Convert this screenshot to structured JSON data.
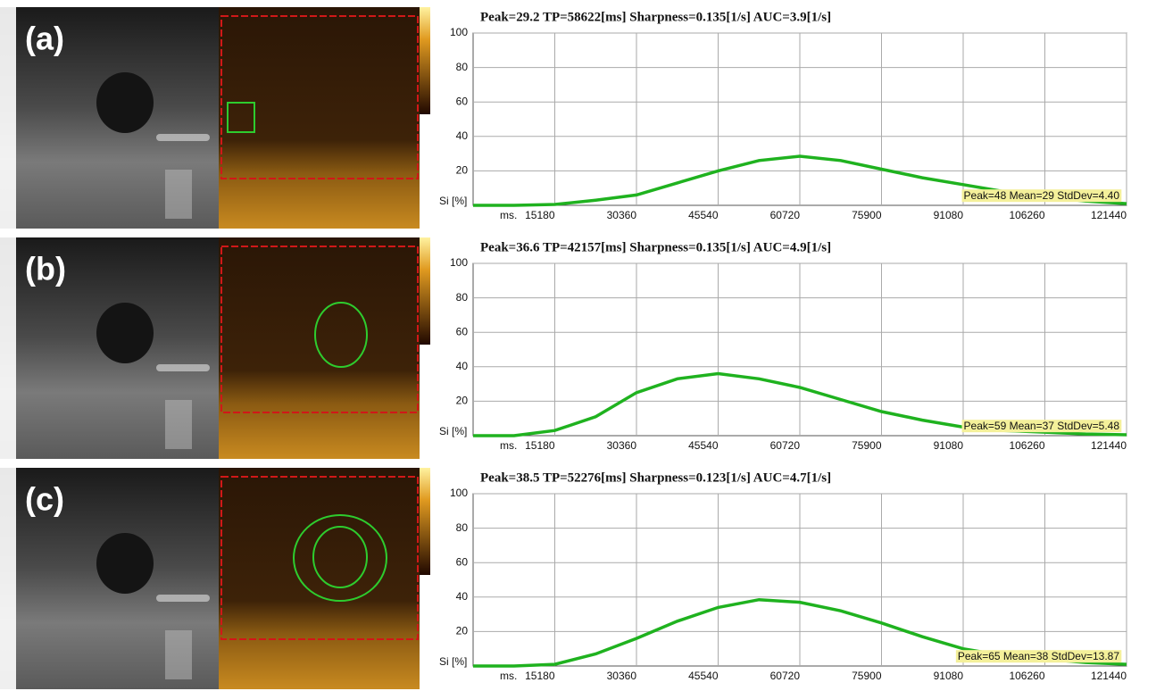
{
  "chart_data": [
    {
      "type": "line",
      "panel_label": "(a)",
      "title": "Peak=29.2  TP=58622[ms]  Sharpness=0.135[1/s]  AUC=3.9[1/s]",
      "ylabel": "Si [%]",
      "xlabel": "ms.",
      "annotation": "Peak=48  Mean=29  StdDev=4.40",
      "color": "#1fb21f",
      "grid": true,
      "x": [
        0,
        7590,
        15180,
        22770,
        30360,
        37950,
        45540,
        53130,
        60720,
        68310,
        75900,
        83490,
        91080,
        98670,
        106260,
        113850,
        121440
      ],
      "values": [
        0,
        0,
        0.5,
        3,
        6,
        13,
        20,
        26,
        28.5,
        26,
        21,
        16,
        12,
        8,
        5,
        2.5,
        1
      ],
      "xlim": [
        0,
        121440
      ],
      "xticks": [
        15180,
        30360,
        45540,
        60720,
        75900,
        91080,
        106260,
        121440
      ],
      "ylim": [
        0,
        100
      ],
      "yticks": [
        20,
        40,
        60,
        80,
        100
      ]
    },
    {
      "type": "line",
      "panel_label": "(b)",
      "title": "Peak=36.6  TP=42157[ms]  Sharpness=0.135[1/s]  AUC=4.9[1/s]",
      "ylabel": "Si [%]",
      "xlabel": "ms.",
      "annotation": "Peak=59  Mean=37  StdDev=5.48",
      "color": "#1fb21f",
      "grid": true,
      "x": [
        0,
        7590,
        15180,
        22770,
        30360,
        37950,
        45540,
        53130,
        60720,
        68310,
        75900,
        83490,
        91080,
        98670,
        106260,
        113850,
        121440
      ],
      "values": [
        0,
        0,
        3,
        11,
        25,
        33,
        36,
        33,
        28,
        21,
        14,
        9,
        5,
        3,
        2,
        1,
        0.5
      ],
      "xlim": [
        0,
        121440
      ],
      "xticks": [
        15180,
        30360,
        45540,
        60720,
        75900,
        91080,
        106260,
        121440
      ],
      "ylim": [
        0,
        100
      ],
      "yticks": [
        20,
        40,
        60,
        80,
        100
      ]
    },
    {
      "type": "line",
      "panel_label": "(c)",
      "title": "Peak=38.5  TP=52276[ms]  Sharpness=0.123[1/s]  AUC=4.7[1/s]",
      "ylabel": "Si [%]",
      "xlabel": "ms.",
      "annotation": "Peak=65  Mean=38  StdDev=13.87",
      "color": "#1fb21f",
      "grid": true,
      "x": [
        0,
        7590,
        15180,
        22770,
        30360,
        37950,
        45540,
        53130,
        60720,
        68310,
        75900,
        83490,
        91080,
        98670,
        106260,
        113850,
        121440
      ],
      "values": [
        0,
        0,
        1,
        7,
        16,
        26,
        34,
        38.5,
        37,
        32,
        25,
        17,
        10,
        6,
        4,
        2,
        1
      ],
      "xlim": [
        0,
        121440
      ],
      "xticks": [
        15180,
        30360,
        45540,
        60720,
        75900,
        91080,
        106260,
        121440
      ],
      "ylim": [
        0,
        100
      ],
      "yticks": [
        20,
        40,
        60,
        80,
        100
      ]
    }
  ]
}
